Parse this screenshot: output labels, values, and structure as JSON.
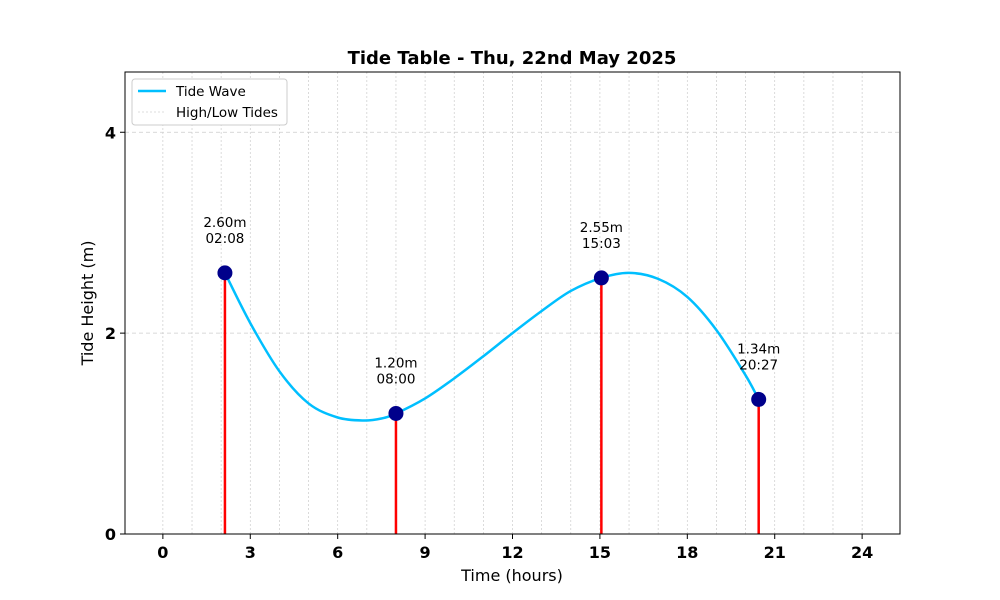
{
  "chart_data": {
    "type": "line",
    "title": "Tide Table - Thu, 22nd May 2025",
    "xlabel": "Time (hours)",
    "ylabel": "Tide Height (m)",
    "xlim": [
      -1.3,
      25.3
    ],
    "ylim": [
      0,
      4.6
    ],
    "xticks": [
      0,
      3,
      6,
      9,
      12,
      15,
      18,
      21,
      24
    ],
    "yticks": [
      0,
      2,
      4
    ],
    "grid": true,
    "legend_position": "top-left",
    "series": [
      {
        "name": "Tide Wave",
        "color": "#00bfff",
        "x": [
          2.13,
          3.0,
          4.0,
          5.0,
          6.0,
          6.9,
          7.5,
          8.0,
          9.0,
          10.0,
          11.0,
          12.0,
          13.0,
          14.0,
          15.05,
          16.0,
          17.0,
          18.0,
          19.0,
          20.0,
          20.45
        ],
        "y": [
          2.6,
          2.1,
          1.62,
          1.3,
          1.16,
          1.13,
          1.15,
          1.2,
          1.35,
          1.55,
          1.77,
          2.0,
          2.22,
          2.42,
          2.55,
          2.6,
          2.54,
          2.36,
          2.03,
          1.58,
          1.34
        ]
      },
      {
        "name": "High/Low Tides",
        "color": "#dddddd",
        "points": [
          {
            "x": 2.13,
            "y": 2.6,
            "height_label": "2.60m",
            "time_label": "02:08"
          },
          {
            "x": 8.0,
            "y": 1.2,
            "height_label": "1.20m",
            "time_label": "08:00"
          },
          {
            "x": 15.05,
            "y": 2.55,
            "height_label": "2.55m",
            "time_label": "15:03"
          },
          {
            "x": 20.45,
            "y": 1.34,
            "height_label": "1.34m",
            "time_label": "20:27"
          }
        ]
      }
    ],
    "colors": {
      "tide_line": "#00bfff",
      "stems": "#ff0000",
      "markers": "#00008b",
      "grid": "#cccccc"
    }
  }
}
